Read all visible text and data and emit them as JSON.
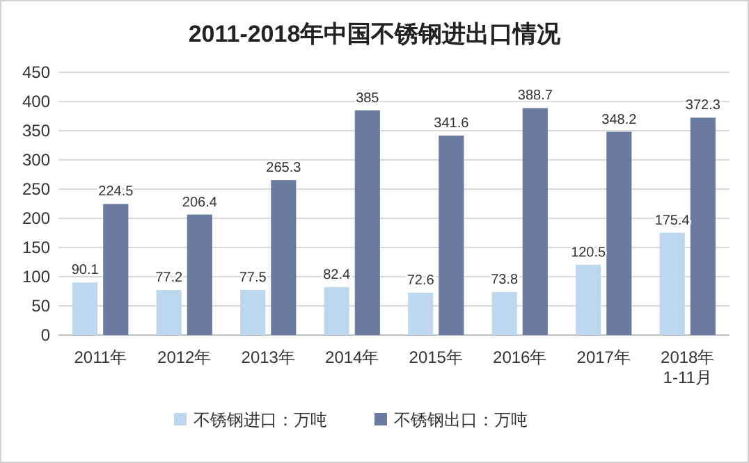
{
  "chart_data": {
    "type": "bar",
    "title": "2011-2018年中国不锈钢进出口情况",
    "categories": [
      "2011年",
      "2012年",
      "2013年",
      "2014年",
      "2015年",
      "2016年",
      "2017年",
      "2018年\n1-11月"
    ],
    "series": [
      {
        "name": "不锈钢进口：万吨",
        "color": "#bdd7ee",
        "values": [
          90.1,
          77.2,
          77.5,
          82.4,
          72.6,
          73.8,
          120.5,
          175.4
        ]
      },
      {
        "name": "不锈钢出口：万吨",
        "color": "#6b7aa1",
        "values": [
          224.5,
          206.4,
          265.3,
          385,
          341.6,
          388.7,
          348.2,
          372.3
        ]
      }
    ],
    "ylim": [
      0,
      450
    ],
    "yticks": [
      0,
      50,
      100,
      150,
      200,
      250,
      300,
      350,
      400,
      450
    ],
    "grid": "y",
    "legend": "bottom",
    "data_labels": true
  }
}
